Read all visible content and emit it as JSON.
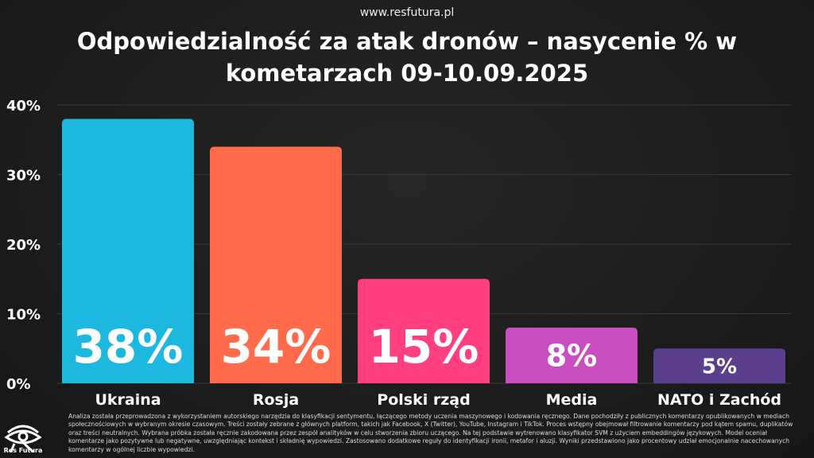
{
  "site_url": "www.resfutura.pl",
  "chart_data": {
    "type": "bar",
    "title": "Odpowiedzialność za atak dronów – nasycenie % w kometarzach 09-10.09.2025",
    "categories": [
      "Ukraina",
      "Rosja",
      "Polski rząd",
      "Media",
      "NATO i Zachód"
    ],
    "values": [
      38,
      34,
      15,
      8,
      5
    ],
    "data_labels": [
      "38%",
      "34%",
      "15%",
      "8%",
      "5%"
    ],
    "colors": [
      "#1cb8df",
      "#ff6b4b",
      "#ff3f7e",
      "#c94fc1",
      "#5b3f8c"
    ],
    "ylim": [
      0,
      40
    ],
    "yticks": [
      0,
      10,
      20,
      30,
      40
    ],
    "ytick_labels": [
      "0%",
      "10%",
      "20%",
      "30%",
      "40%"
    ],
    "xlabel": "",
    "ylabel": "",
    "grid": true
  },
  "footnote": "Analiza została przeprowadzona z wykorzystaniem autorskiego narzędzia do klasyfikacji sentymentu, łączącego metody uczenia maszynowego i kodowania ręcznego. Dane pochodziły z publicznych komentarzy opublikowanych w mediach społecznościowych w wybranym okresie czasowym. Treści zostały zebrane z głównych platform, takich jak Facebook, X (Twitter), YouTube, Instagram i TikTok. Proces wstępny obejmował filtrowanie komentarzy pod kątem spamu, duplikatów oraz treści neutralnych. Wybrana próbka została ręcznie zakodowana przez zespół analityków w celu stworzenia zbioru uczącego. Na tej podstawie wytrenowano klasyfikator SVM z użyciem embeddingów językowych. Model oceniał komentarze jako pozytywne lub negatywne, uwzględniając kontekst i składnię wypowiedzi. Zastosowano dodatkowe reguły do identyfikacji ironii, metafor i aluzji. Wyniki przedstawiono jako procentowy udział emocjonalnie nacechowanych komentarzy w ogólnej liczbie wypowiedzi.",
  "logo_text": "Res Futura"
}
